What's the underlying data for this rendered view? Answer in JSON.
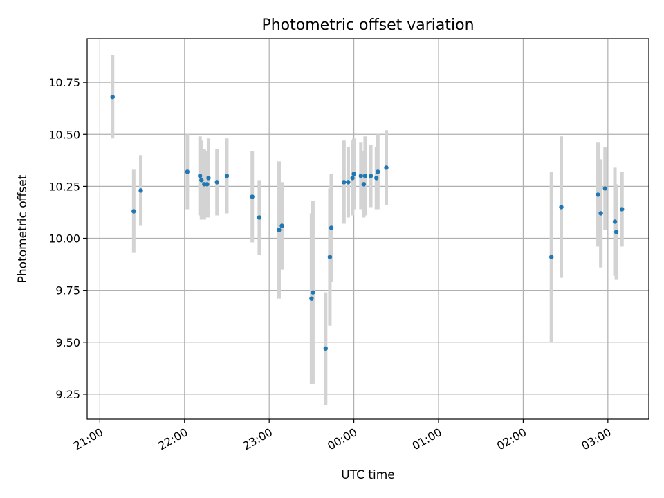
{
  "chart_data": {
    "type": "scatter",
    "title": "Photometric offset variation",
    "xlabel": "UTC time",
    "ylabel": "Photometric offset",
    "grid": true,
    "marker_color": "#1f77b4",
    "errorbar_color": "#d3d3d3",
    "xlim": [
      "20:51",
      "03:29"
    ],
    "ylim": [
      9.13,
      10.96
    ],
    "x_ticks": [
      "21:00",
      "22:00",
      "23:00",
      "00:00",
      "01:00",
      "02:00",
      "03:00"
    ],
    "y_ticks": [
      "9.25",
      "9.50",
      "9.75",
      "10.00",
      "10.25",
      "10.50",
      "10.75"
    ],
    "points": [
      {
        "t": "21:09",
        "y": 10.68,
        "err": 0.2
      },
      {
        "t": "21:24",
        "y": 10.13,
        "err": 0.2
      },
      {
        "t": "21:29",
        "y": 10.23,
        "err": 0.17
      },
      {
        "t": "22:02",
        "y": 10.32,
        "err": 0.18
      },
      {
        "t": "22:11",
        "y": 10.3,
        "err": 0.19
      },
      {
        "t": "22:12",
        "y": 10.28,
        "err": 0.19
      },
      {
        "t": "22:14",
        "y": 10.26,
        "err": 0.17
      },
      {
        "t": "22:16",
        "y": 10.26,
        "err": 0.16
      },
      {
        "t": "22:17",
        "y": 10.29,
        "err": 0.19
      },
      {
        "t": "22:23",
        "y": 10.27,
        "err": 0.16
      },
      {
        "t": "22:30",
        "y": 10.3,
        "err": 0.18
      },
      {
        "t": "22:48",
        "y": 10.2,
        "err": 0.22
      },
      {
        "t": "22:53",
        "y": 10.1,
        "err": 0.18
      },
      {
        "t": "23:07",
        "y": 10.04,
        "err": 0.33
      },
      {
        "t": "23:09",
        "y": 10.06,
        "err": 0.21
      },
      {
        "t": "23:30",
        "y": 9.71,
        "err": 0.41
      },
      {
        "t": "23:31",
        "y": 9.74,
        "err": 0.44
      },
      {
        "t": "23:40",
        "y": 9.47,
        "err": 0.27
      },
      {
        "t": "23:43",
        "y": 9.91,
        "err": 0.33
      },
      {
        "t": "23:44",
        "y": 10.05,
        "err": 0.26
      },
      {
        "t": "23:53",
        "y": 10.27,
        "err": 0.2
      },
      {
        "t": "23:56",
        "y": 10.27,
        "err": 0.17
      },
      {
        "t": "23:59",
        "y": 10.29,
        "err": 0.18
      },
      {
        "t": "00:00",
        "y": 10.31,
        "err": 0.17
      },
      {
        "t": "00:05",
        "y": 10.3,
        "err": 0.16
      },
      {
        "t": "00:07",
        "y": 10.26,
        "err": 0.16
      },
      {
        "t": "00:08",
        "y": 10.3,
        "err": 0.19
      },
      {
        "t": "00:12",
        "y": 10.3,
        "err": 0.15
      },
      {
        "t": "00:16",
        "y": 10.29,
        "err": 0.15
      },
      {
        "t": "00:17",
        "y": 10.32,
        "err": 0.18
      },
      {
        "t": "00:23",
        "y": 10.34,
        "err": 0.18
      },
      {
        "t": "02:20",
        "y": 9.91,
        "err": 0.41
      },
      {
        "t": "02:27",
        "y": 10.15,
        "err": 0.34
      },
      {
        "t": "02:53",
        "y": 10.21,
        "err": 0.25
      },
      {
        "t": "02:55",
        "y": 10.12,
        "err": 0.26
      },
      {
        "t": "02:58",
        "y": 10.24,
        "err": 0.2
      },
      {
        "t": "03:05",
        "y": 10.08,
        "err": 0.26
      },
      {
        "t": "03:06",
        "y": 10.03,
        "err": 0.23
      },
      {
        "t": "03:10",
        "y": 10.14,
        "err": 0.18
      }
    ]
  }
}
